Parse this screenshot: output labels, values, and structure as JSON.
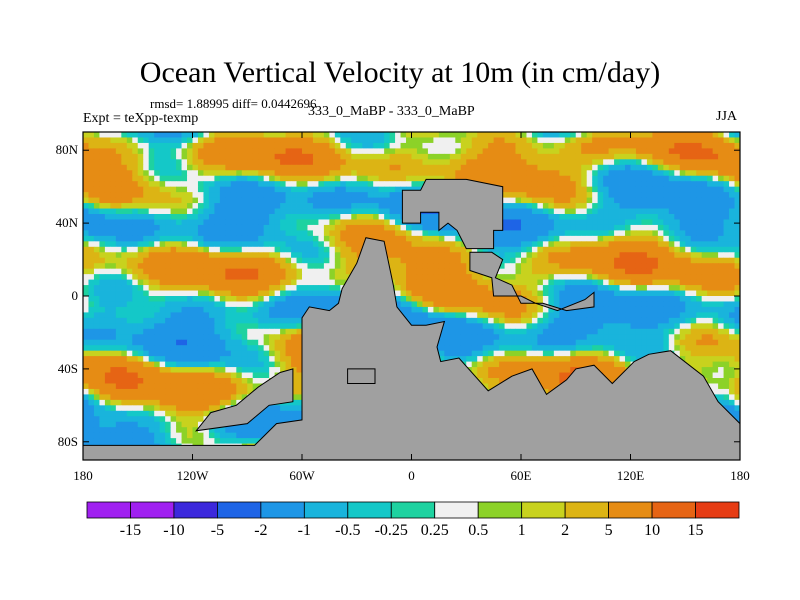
{
  "chart_data": {
    "type": "heatmap",
    "title": "Ocean Vertical Velocity at 10m (in cm/day)",
    "rmsd_text": "rmsd= 1.88995 diff= 0.0442696",
    "experiment_text": "Expt = teXpp-texmp",
    "center_text": "333_0_MaBP - 333_0_MaBP",
    "season": "JJA",
    "xlim": [
      -180,
      180
    ],
    "ylim": [
      -90,
      90
    ],
    "x_ticks": [
      {
        "value": -180,
        "label": "180"
      },
      {
        "value": -120,
        "label": "120W"
      },
      {
        "value": -60,
        "label": "60W"
      },
      {
        "value": 0,
        "label": "0"
      },
      {
        "value": 60,
        "label": "60E"
      },
      {
        "value": 120,
        "label": "120E"
      },
      {
        "value": 180,
        "label": "180"
      }
    ],
    "y_ticks": [
      {
        "value": 80,
        "label": "80N"
      },
      {
        "value": 40,
        "label": "40N"
      },
      {
        "value": 0,
        "label": "0"
      },
      {
        "value": -40,
        "label": "40S"
      },
      {
        "value": -80,
        "label": "80S"
      }
    ],
    "colorbar": {
      "levels": [
        "-15",
        "-10",
        "-5",
        "-2",
        "-1",
        "-0.5",
        "-0.25",
        "0.25",
        "0.5",
        "1",
        "2",
        "5",
        "10",
        "15"
      ],
      "colors": [
        "#a020f0",
        "#3c28dc",
        "#1e64e6",
        "#1e96e6",
        "#19b4dc",
        "#14c8c8",
        "#1ed2a0",
        "#f0f0f0",
        "#8cd228",
        "#c8d21e",
        "#dcb414",
        "#e68c14",
        "#e66414",
        "#e63c14"
      ]
    },
    "land_color": "#a0a0a0",
    "land_mask": [
      {
        "name": "northern-continent",
        "lonlat": [
          [
            -5,
            48
          ],
          [
            -5,
            58
          ],
          [
            5,
            58
          ],
          [
            8,
            64
          ],
          [
            30,
            64
          ],
          [
            50,
            60
          ],
          [
            50,
            36
          ],
          [
            45,
            36
          ],
          [
            45,
            26
          ],
          [
            30,
            26
          ],
          [
            25,
            36
          ],
          [
            20,
            40
          ],
          [
            15,
            36
          ],
          [
            15,
            46
          ],
          [
            5,
            46
          ],
          [
            5,
            40
          ],
          [
            -5,
            40
          ]
        ]
      },
      {
        "name": "east-landmass",
        "lonlat": [
          [
            32,
            24
          ],
          [
            32,
            14
          ],
          [
            44,
            10
          ],
          [
            45,
            0
          ],
          [
            60,
            0
          ],
          [
            68,
            -4
          ],
          [
            80,
            -8
          ],
          [
            95,
            -2
          ],
          [
            100,
            2
          ],
          [
            100,
            -6
          ],
          [
            85,
            -8
          ],
          [
            72,
            -4
          ],
          [
            60,
            -4
          ],
          [
            55,
            6
          ],
          [
            46,
            10
          ],
          [
            50,
            20
          ],
          [
            44,
            24
          ]
        ]
      },
      {
        "name": "southern-continent",
        "lonlat": [
          [
            -60,
            -12
          ],
          [
            -60,
            -68
          ],
          [
            -74,
            -70
          ],
          [
            -86,
            -82
          ],
          [
            -180,
            -82
          ],
          [
            -180,
            -90
          ],
          [
            180,
            -90
          ],
          [
            180,
            -70
          ],
          [
            168,
            -58
          ],
          [
            160,
            -44
          ],
          [
            142,
            -30
          ],
          [
            130,
            -32
          ],
          [
            122,
            -36
          ],
          [
            110,
            -48
          ],
          [
            100,
            -38
          ],
          [
            90,
            -40
          ],
          [
            85,
            -46
          ],
          [
            74,
            -54
          ],
          [
            66,
            -40
          ],
          [
            55,
            -44
          ],
          [
            42,
            -52
          ],
          [
            26,
            -34
          ],
          [
            16,
            -36
          ],
          [
            14,
            -28
          ],
          [
            18,
            -14
          ],
          [
            8,
            -16
          ],
          [
            0,
            -16
          ],
          [
            -8,
            -6
          ],
          [
            -10,
            6
          ],
          [
            -15,
            30
          ],
          [
            -25,
            32
          ],
          [
            -30,
            18
          ],
          [
            -38,
            4
          ],
          [
            -40,
            -4
          ],
          [
            -45,
            -8
          ],
          [
            -56,
            -6
          ]
        ]
      },
      {
        "name": "southwest-peninsula",
        "lonlat": [
          [
            -65,
            -40
          ],
          [
            -65,
            -58
          ],
          [
            -78,
            -60
          ],
          [
            -90,
            -70
          ],
          [
            -118,
            -74
          ],
          [
            -110,
            -64
          ],
          [
            -96,
            -60
          ],
          [
            -84,
            -50
          ],
          [
            -72,
            -42
          ]
        ]
      },
      {
        "name": "small-island",
        "lonlat": [
          [
            -35,
            -40
          ],
          [
            -35,
            -48
          ],
          [
            -20,
            -48
          ],
          [
            -20,
            -40
          ]
        ]
      }
    ]
  }
}
